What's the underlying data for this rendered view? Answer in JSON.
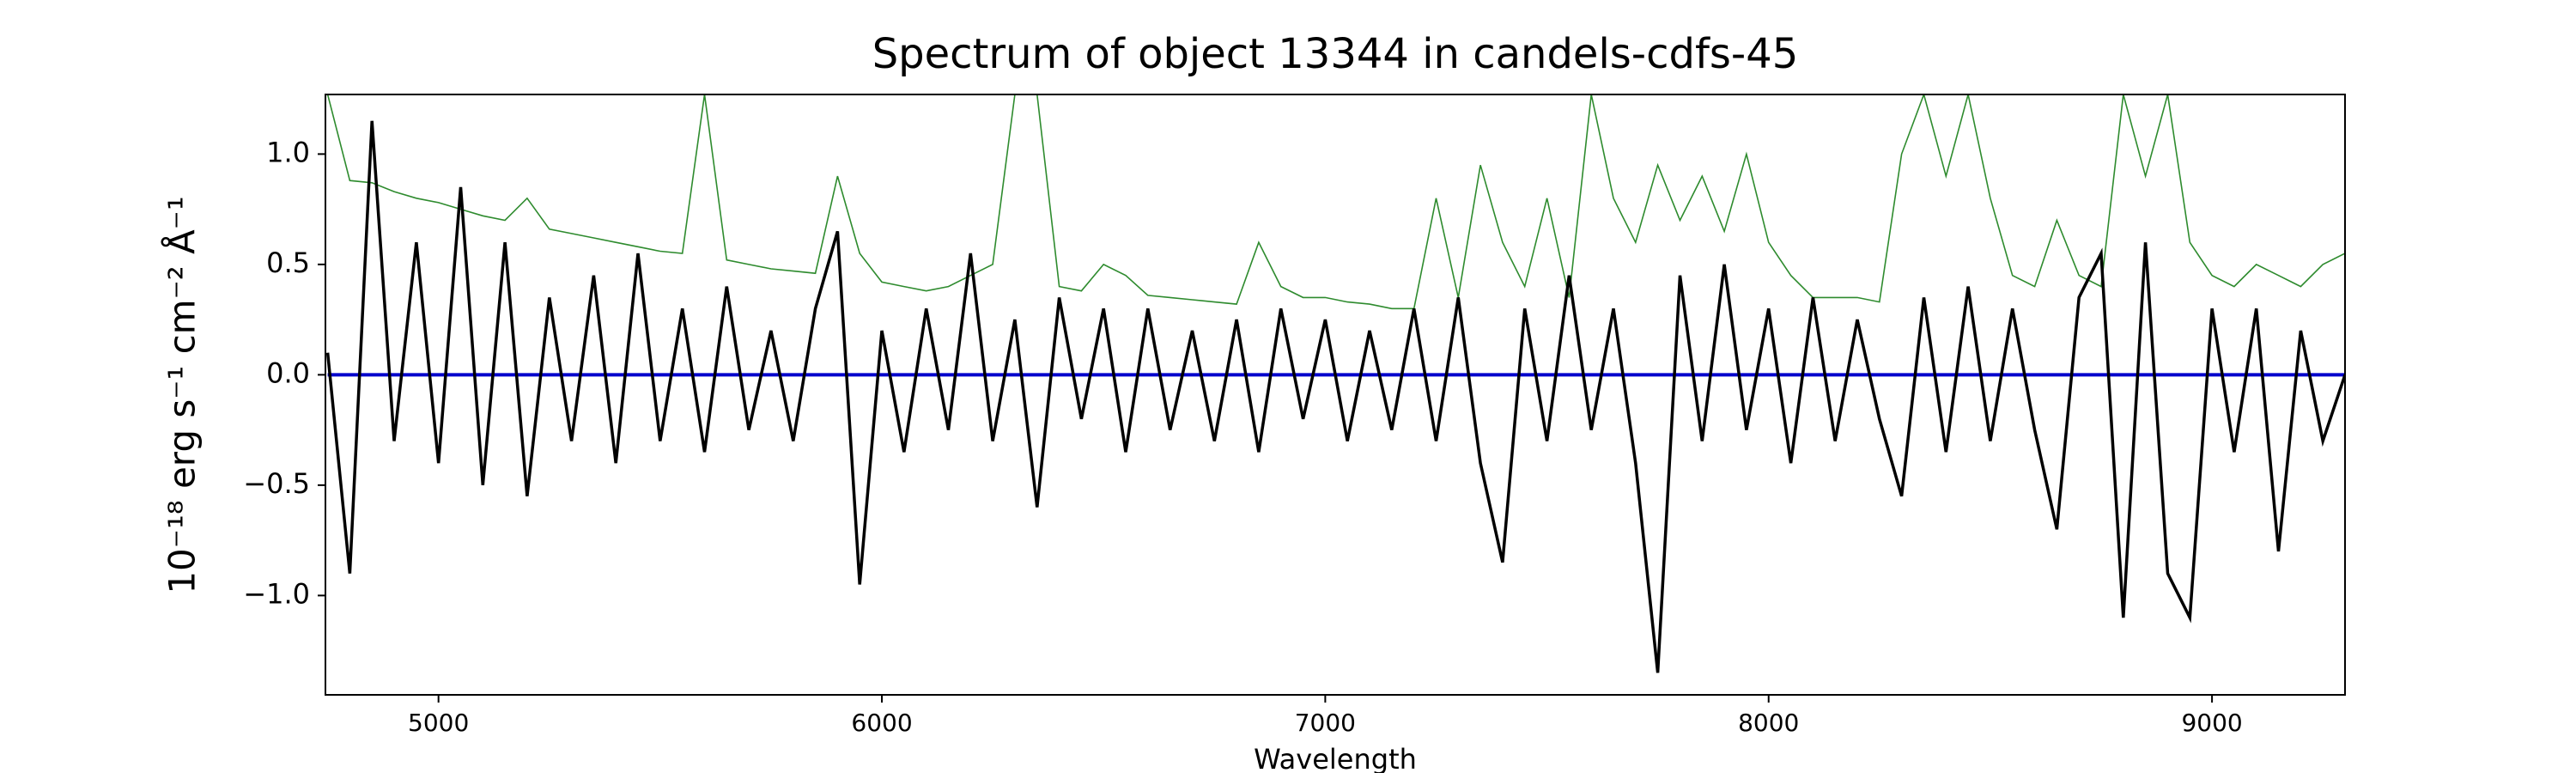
{
  "chart_data": {
    "type": "line",
    "title": "Spectrum of object 13344 in candels-cdfs-45",
    "xlabel": "Wavelength",
    "ylabel": "10⁻¹⁸ erg s⁻¹ cm⁻² Å⁻¹",
    "x": [
      4750,
      4800,
      4850,
      4900,
      4950,
      5000,
      5050,
      5100,
      5150,
      5200,
      5250,
      5300,
      5350,
      5400,
      5450,
      5500,
      5550,
      5600,
      5650,
      5700,
      5750,
      5800,
      5850,
      5900,
      5950,
      6000,
      6050,
      6100,
      6150,
      6200,
      6250,
      6300,
      6350,
      6400,
      6450,
      6500,
      6550,
      6600,
      6650,
      6700,
      6750,
      6800,
      6850,
      6900,
      6950,
      7000,
      7050,
      7100,
      7150,
      7200,
      7250,
      7300,
      7350,
      7400,
      7450,
      7500,
      7550,
      7600,
      7650,
      7700,
      7750,
      7800,
      7850,
      7900,
      7950,
      8000,
      8050,
      8100,
      8150,
      8200,
      8250,
      8300,
      8350,
      8400,
      8450,
      8500,
      8550,
      8600,
      8650,
      8700,
      8750,
      8800,
      8850,
      8900,
      8950,
      9000,
      9050,
      9100,
      9150,
      9200,
      9250,
      9300
    ],
    "series": [
      {
        "color": "#2e8b2e",
        "values": [
          1.27,
          0.88,
          0.87,
          0.83,
          0.8,
          0.78,
          0.75,
          0.72,
          0.7,
          0.8,
          0.66,
          0.64,
          0.62,
          0.6,
          0.58,
          0.56,
          0.55,
          1.27,
          0.52,
          0.5,
          0.48,
          0.47,
          0.46,
          0.9,
          0.55,
          0.42,
          0.4,
          0.38,
          0.4,
          0.45,
          0.5,
          1.27,
          1.27,
          0.4,
          0.38,
          0.5,
          0.45,
          0.36,
          0.35,
          0.34,
          0.33,
          0.32,
          0.6,
          0.4,
          0.35,
          0.35,
          0.33,
          0.32,
          0.3,
          0.3,
          0.8,
          0.35,
          0.95,
          0.6,
          0.4,
          0.8,
          0.35,
          1.27,
          0.8,
          0.6,
          0.95,
          0.7,
          0.9,
          0.65,
          1.0,
          0.6,
          0.45,
          0.35,
          0.35,
          0.35,
          0.33,
          1.0,
          1.27,
          0.9,
          1.27,
          0.8,
          0.45,
          0.4,
          0.7,
          0.45,
          0.4,
          1.27,
          0.9,
          1.27,
          0.6,
          0.45,
          0.4,
          0.5,
          0.45,
          0.4,
          0.5,
          0.55
        ]
      },
      {
        "color": "#0000cc",
        "values": [
          0,
          0,
          0,
          0,
          0,
          0,
          0,
          0,
          0,
          0,
          0,
          0,
          0,
          0,
          0,
          0,
          0,
          0,
          0,
          0,
          0,
          0,
          0,
          0,
          0,
          0,
          0,
          0,
          0,
          0,
          0,
          0,
          0,
          0,
          0,
          0,
          0,
          0,
          0,
          0,
          0,
          0,
          0,
          0,
          0,
          0,
          0,
          0,
          0,
          0,
          0,
          0,
          0,
          0,
          0,
          0,
          0,
          0,
          0,
          0,
          0,
          0,
          0,
          0,
          0,
          0,
          0,
          0,
          0,
          0,
          0,
          0,
          0,
          0,
          0,
          0,
          0,
          0,
          0,
          0,
          0,
          0,
          0,
          0,
          0,
          0,
          0,
          0,
          0,
          0,
          0,
          0
        ]
      },
      {
        "color": "#000000",
        "values": [
          0.1,
          -0.9,
          1.15,
          -0.3,
          0.6,
          -0.4,
          0.85,
          -0.5,
          0.6,
          -0.55,
          0.35,
          -0.3,
          0.45,
          -0.4,
          0.55,
          -0.3,
          0.3,
          -0.35,
          0.4,
          -0.25,
          0.2,
          -0.3,
          0.3,
          0.65,
          -0.95,
          0.2,
          -0.35,
          0.3,
          -0.25,
          0.55,
          -0.3,
          0.25,
          -0.6,
          0.35,
          -0.2,
          0.3,
          -0.35,
          0.3,
          -0.25,
          0.2,
          -0.3,
          0.25,
          -0.35,
          0.3,
          -0.2,
          0.25,
          -0.3,
          0.2,
          -0.25,
          0.3,
          -0.3,
          0.35,
          -0.4,
          -0.85,
          0.3,
          -0.3,
          0.45,
          -0.25,
          0.3,
          -0.4,
          -1.35,
          0.45,
          -0.3,
          0.5,
          -0.25,
          0.3,
          -0.4,
          0.35,
          -0.3,
          0.25,
          -0.2,
          -0.55,
          0.35,
          -0.35,
          0.4,
          -0.3,
          0.3,
          -0.25,
          -0.7,
          0.35,
          0.55,
          -1.1,
          0.6,
          -0.9,
          -1.1,
          0.3,
          -0.35,
          0.3,
          -0.8,
          0.2,
          -0.3,
          0.0
        ]
      }
    ],
    "xlim": [
      4745,
      9300
    ],
    "ylim": [
      -1.45,
      1.27
    ],
    "xticks": [
      5000,
      6000,
      7000,
      8000,
      9000
    ],
    "yticks": [
      {
        "value": -1.0,
        "label": "−1.0"
      },
      {
        "value": -0.5,
        "label": "−0.5"
      },
      {
        "value": 0.0,
        "label": "0.0"
      },
      {
        "value": 0.5,
        "label": "0.5"
      },
      {
        "value": 1.0,
        "label": "1.0"
      }
    ]
  }
}
